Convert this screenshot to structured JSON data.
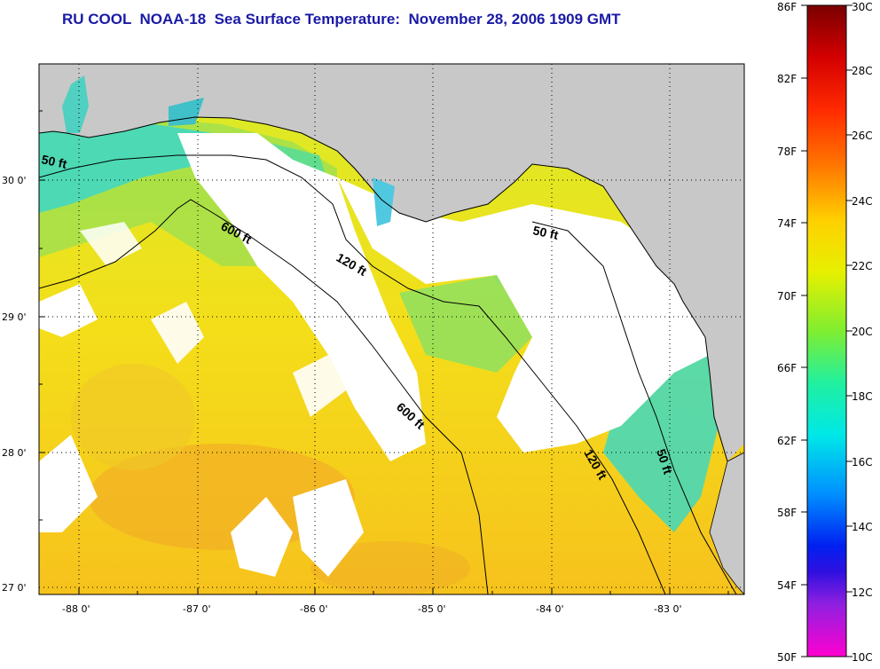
{
  "title": "RU COOL  NOAA-18  Sea Surface Temperature:  November 28, 2006 1909 GMT",
  "map": {
    "lon_ticks": [
      "-88 0'",
      "-87 0'",
      "-86 0'",
      "-85 0'",
      "-84 0'",
      "-83 0'"
    ],
    "lat_ticks": [
      "30 0'",
      "29 0'",
      "28 0'",
      "27 0'"
    ],
    "contours": [
      "50 ft",
      "600 ft",
      "120 ft",
      "50 ft",
      "600 ft",
      "120 ft",
      "50 ft"
    ],
    "colors": {
      "land": "#c8c8c8",
      "cloud": "#ffffff",
      "warm_sst": "#f5dc1e",
      "cool_sst": "#3cd7c8"
    }
  },
  "colorbar": {
    "f_labels": [
      "86F",
      "82F",
      "78F",
      "74F",
      "70F",
      "66F",
      "62F",
      "58F",
      "54F",
      "50F"
    ],
    "c_labels": [
      "30C",
      "28C",
      "26C",
      "24C",
      "22C",
      "20C",
      "18C",
      "16C",
      "14C",
      "12C",
      "10C"
    ]
  }
}
